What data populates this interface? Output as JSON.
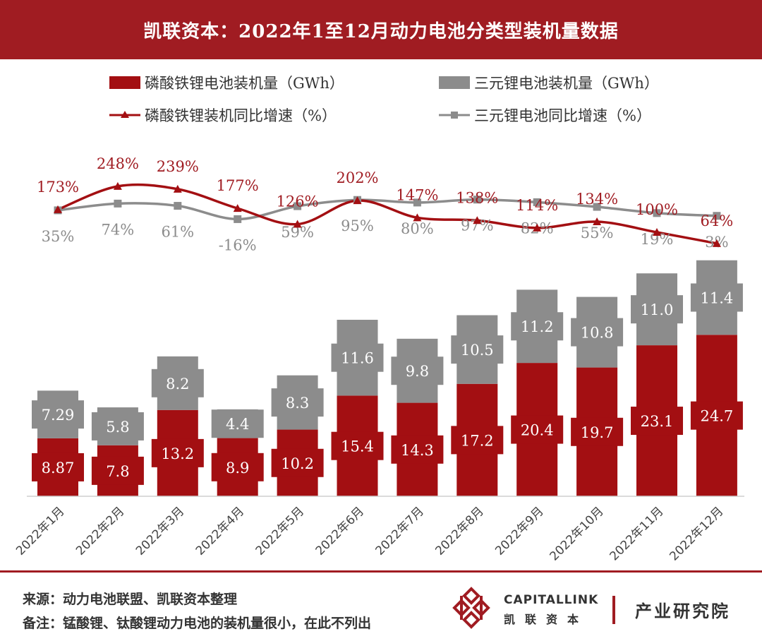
{
  "header": {
    "title": "凯联资本：2022年1至12月动力电池分类型装机量数据"
  },
  "colors": {
    "lfp": "#a30f12",
    "ternary": "#8c8c8c",
    "header_bg": "#a01c22"
  },
  "legend": {
    "lfp_bar": "磷酸铁锂电池装机量（GWh）",
    "ternary_bar": "三元锂电池装机量（GWh）",
    "lfp_line": "磷酸铁锂装机同比增速（%）",
    "ternary_line": "三元锂电池同比增速（%）"
  },
  "chart_data": {
    "type": "bar",
    "stacked": true,
    "categories": [
      "2022年1月",
      "2022年2月",
      "2022年3月",
      "2022年4月",
      "2022年5月",
      "2022年6月",
      "2022年7月",
      "2022年8月",
      "2022年9月",
      "2022年10月",
      "2022年11月",
      "2022年12月"
    ],
    "series": [
      {
        "name": "磷酸铁锂电池装机量（GWh）",
        "type": "bar",
        "values": [
          8.87,
          7.8,
          13.2,
          8.9,
          10.2,
          15.4,
          14.3,
          17.2,
          20.4,
          19.7,
          23.1,
          24.7
        ],
        "labels": [
          "8.87",
          "7.8",
          "13.2",
          "8.9",
          "10.2",
          "15.4",
          "14.3",
          "17.2",
          "20.4",
          "19.7",
          "23.1",
          "24.7"
        ]
      },
      {
        "name": "三元锂电池装机量（GWh）",
        "type": "bar",
        "values": [
          7.29,
          5.8,
          8.2,
          4.4,
          8.3,
          11.6,
          9.8,
          10.5,
          11.2,
          10.8,
          11.0,
          11.4
        ],
        "labels": [
          "7.29",
          "5.8",
          "8.2",
          "4.4",
          "8.3",
          "11.6",
          "9.8",
          "10.5",
          "11.2",
          "10.8",
          "11.0",
          "11.4"
        ]
      },
      {
        "name": "磷酸铁锂装机同比增速（%）",
        "type": "line",
        "values": [
          173,
          248,
          239,
          177,
          126,
          202,
          147,
          138,
          114,
          134,
          100,
          64
        ],
        "labels": [
          "173%",
          "248%",
          "239%",
          "177%",
          "126%",
          "202%",
          "147%",
          "138%",
          "114%",
          "134%",
          "100%",
          "64%"
        ]
      },
      {
        "name": "三元锂电池同比增速（%）",
        "type": "line",
        "values": [
          35,
          74,
          61,
          -16,
          59,
          95,
          80,
          97,
          82,
          55,
          19,
          3
        ],
        "labels": [
          "35%",
          "74%",
          "61%",
          "-16%",
          "59%",
          "95%",
          "80%",
          "97%",
          "82%",
          "55%",
          "19%",
          "3%"
        ]
      }
    ],
    "grid": false,
    "legend_position": "top"
  },
  "footer": {
    "source": "来源：动力电池联盟、凯联资本整理",
    "note": "备注：锰酸锂、钛酸锂动力电池的装机量很小，在此不列出",
    "brand_en": "CAPITALLINK",
    "brand_cn": "凯联资本",
    "institute": "产业研究院"
  }
}
